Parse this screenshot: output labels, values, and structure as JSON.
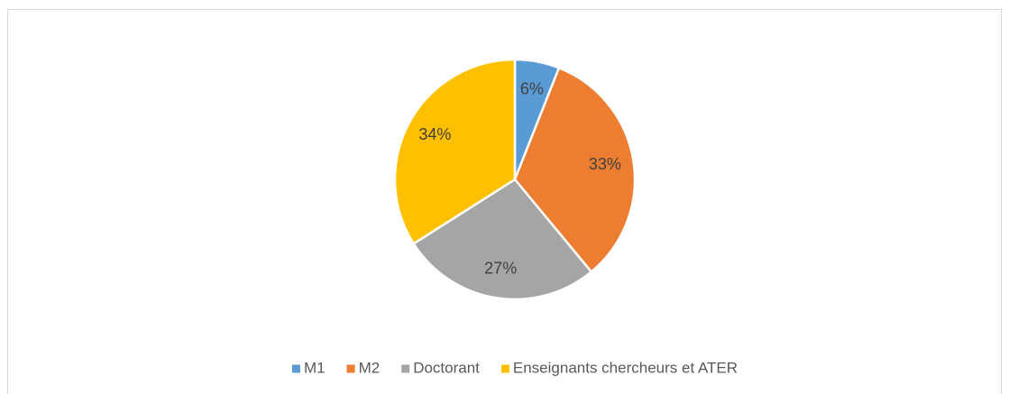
{
  "chart_data": {
    "type": "pie",
    "categories": [
      "M1",
      "M2",
      "Doctorant",
      "Enseignants chercheurs et ATER"
    ],
    "values": [
      6,
      33,
      27,
      34
    ],
    "value_labels": [
      "6%",
      "33%",
      "27%",
      "34%"
    ],
    "colors": [
      "#5b9bd5",
      "#ed7d31",
      "#a5a5a5",
      "#ffc000"
    ],
    "legend": "bottom"
  }
}
